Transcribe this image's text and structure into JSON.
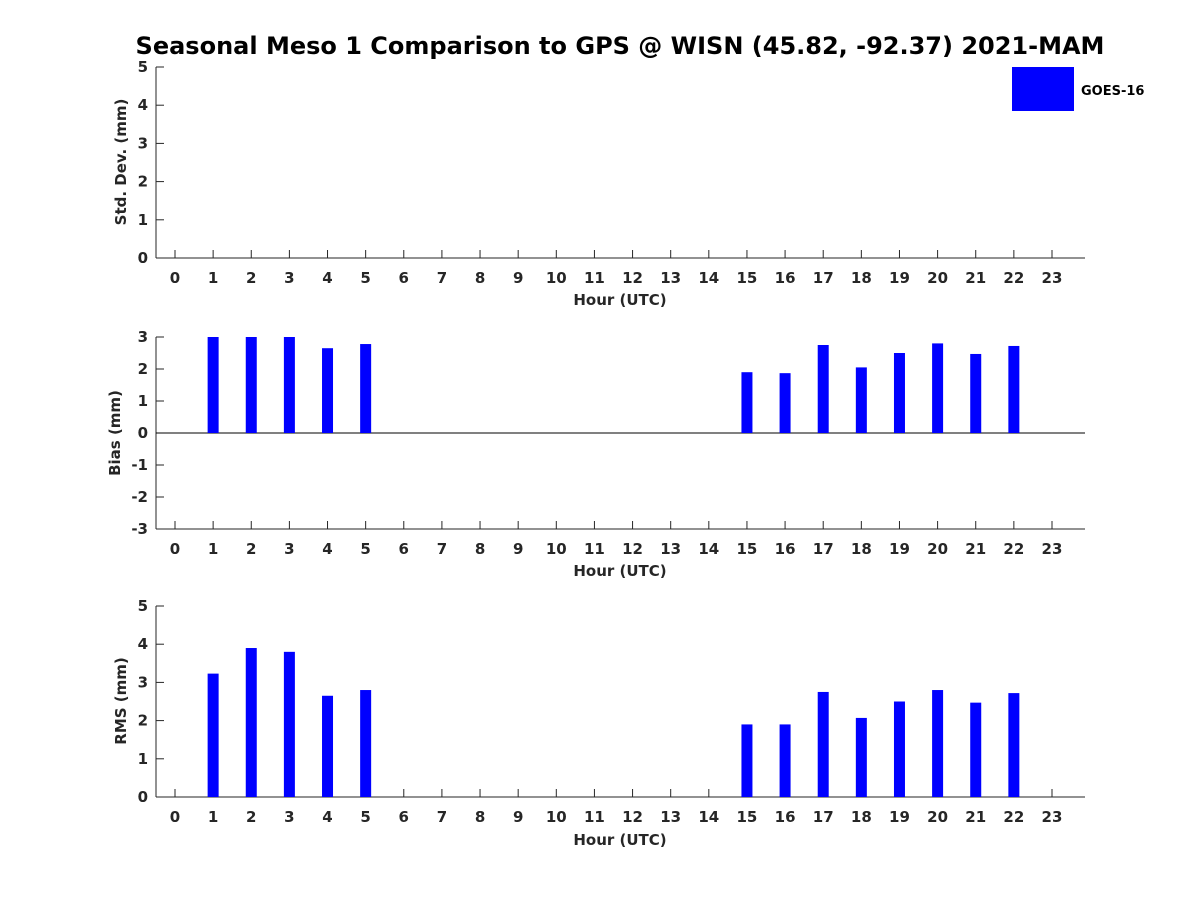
{
  "chart_data": {
    "title": "Seasonal Meso 1 Comparison to GPS @ WISN (45.82, -92.37) 2021-MAM",
    "legend": {
      "placement": "top-right",
      "entries": [
        {
          "label": "GOES-16",
          "color": "#0000ff"
        }
      ]
    },
    "panels": [
      {
        "type": "bar",
        "ylabel": "Std. Dev. (mm)",
        "xlabel": "Hour (UTC)",
        "ylim": [
          0,
          5
        ],
        "yticks": [
          0,
          1,
          2,
          3,
          4,
          5
        ],
        "x": [
          0,
          1,
          2,
          3,
          4,
          5,
          6,
          7,
          8,
          9,
          10,
          11,
          12,
          13,
          14,
          15,
          16,
          17,
          18,
          19,
          20,
          21,
          22,
          23
        ],
        "series": [
          {
            "name": "GOES-16",
            "color": "#0000ff",
            "values": [
              null,
              null,
              null,
              null,
              null,
              null,
              null,
              null,
              null,
              null,
              null,
              null,
              null,
              null,
              null,
              null,
              null,
              null,
              null,
              null,
              null,
              null,
              null,
              null
            ]
          }
        ]
      },
      {
        "type": "bar",
        "ylabel": "Bias (mm)",
        "xlabel": "Hour (UTC)",
        "ylim": [
          -3,
          3
        ],
        "yticks": [
          -3,
          -2,
          -1,
          0,
          1,
          2,
          3
        ],
        "x": [
          0,
          1,
          2,
          3,
          4,
          5,
          6,
          7,
          8,
          9,
          10,
          11,
          12,
          13,
          14,
          15,
          16,
          17,
          18,
          19,
          20,
          21,
          22,
          23
        ],
        "series": [
          {
            "name": "GOES-16",
            "color": "#0000ff",
            "values": [
              null,
              3.0,
              3.0,
              3.0,
              2.65,
              2.78,
              null,
              null,
              null,
              null,
              null,
              null,
              null,
              null,
              null,
              1.9,
              1.87,
              2.75,
              2.05,
              2.5,
              2.8,
              2.47,
              2.72,
              null
            ]
          }
        ]
      },
      {
        "type": "bar",
        "ylabel": "RMS (mm)",
        "xlabel": "Hour (UTC)",
        "ylim": [
          0,
          5
        ],
        "yticks": [
          0,
          1,
          2,
          3,
          4,
          5
        ],
        "x": [
          0,
          1,
          2,
          3,
          4,
          5,
          6,
          7,
          8,
          9,
          10,
          11,
          12,
          13,
          14,
          15,
          16,
          17,
          18,
          19,
          20,
          21,
          22,
          23
        ],
        "series": [
          {
            "name": "GOES-16",
            "color": "#0000ff",
            "values": [
              null,
              3.23,
              3.9,
              3.8,
              2.65,
              2.8,
              null,
              null,
              null,
              null,
              null,
              null,
              null,
              null,
              null,
              1.9,
              1.9,
              2.75,
              2.07,
              2.5,
              2.8,
              2.47,
              2.72,
              null
            ]
          }
        ]
      }
    ]
  }
}
